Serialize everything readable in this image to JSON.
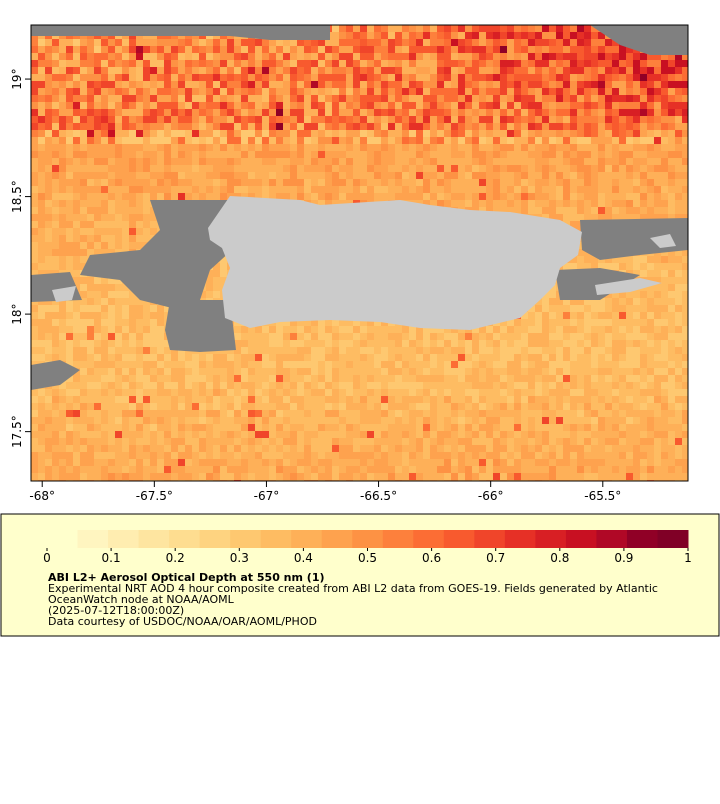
{
  "map": {
    "xlim": [
      -68.05,
      -65.12
    ],
    "ylim": [
      17.29,
      19.23
    ],
    "xticks": [
      {
        "value": -68,
        "label": "-68°"
      },
      {
        "value": -67.5,
        "label": "-67.5°"
      },
      {
        "value": -67,
        "label": "-67°"
      },
      {
        "value": -66.5,
        "label": "-66.5°"
      },
      {
        "value": -66,
        "label": "-66°"
      },
      {
        "value": -65.5,
        "label": "-65.5°"
      }
    ],
    "yticks": [
      {
        "value": 19,
        "label": "19°"
      },
      {
        "value": 18.5,
        "label": "18.5°"
      },
      {
        "value": 18,
        "label": "18°"
      },
      {
        "value": 17.5,
        "label": "17.5°"
      }
    ]
  },
  "colorbar": {
    "clim": [
      0,
      1
    ],
    "ticks": [
      0,
      0.1,
      0.2,
      0.3,
      0.4,
      0.5,
      0.6,
      0.7,
      0.8,
      0.9,
      1
    ],
    "colors": [
      "#ffffcc",
      "#fff5c0",
      "#ffedb0",
      "#fee5a0",
      "#fedd90",
      "#fed380",
      "#fec870",
      "#febc62",
      "#feb058",
      "#fea24e",
      "#fd9244",
      "#fd803c",
      "#fc6d34",
      "#f85a2e",
      "#f0452a",
      "#e63026",
      "#d81f24",
      "#c81022",
      "#b00826",
      "#900026",
      "#800026"
    ]
  },
  "caption": {
    "title": "ABI L2+ Aerosol Optical Depth at 550 nm (1)",
    "lines": [
      "Experimental NRT AOD 4 hour composite created from ABI L2 data from GOES-19. Fields generated by Atlantic",
      "OceanWatch node at NOAA/AOML",
      "(2025-07-12T18:00:00Z)",
      "Data courtesy of USDOC/NOAA/OAR/AOML/PHOD"
    ]
  }
}
